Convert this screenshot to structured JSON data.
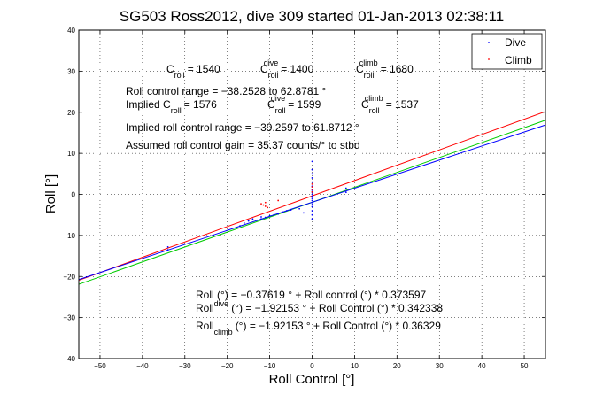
{
  "chart_data": {
    "type": "scatter",
    "title": "SG503 Ross2012, dive 309 started 01-Jan-2013 02:38:11",
    "xlabel": "Roll Control [°]",
    "ylabel": "Roll [°]",
    "xlim": [
      -55,
      55
    ],
    "ylim": [
      -40,
      40
    ],
    "xticks": [
      -50,
      -40,
      -30,
      -20,
      -10,
      0,
      10,
      20,
      30,
      40,
      50
    ],
    "yticks": [
      -40,
      -30,
      -20,
      -10,
      0,
      10,
      20,
      30,
      40
    ],
    "xtick_labels": [
      "−50",
      "−40",
      "−30",
      "−20",
      "−10",
      "0",
      "10",
      "20",
      "30",
      "40",
      "50"
    ],
    "ytick_labels": [
      "−40",
      "−30",
      "−20",
      "−10",
      "0",
      "10",
      "20",
      "30",
      "40"
    ],
    "grid": true,
    "legend": {
      "position": "top-right",
      "entries": [
        {
          "label": "Dive",
          "color": "#0000ff"
        },
        {
          "label": "Climb",
          "color": "#ff0000"
        }
      ]
    },
    "fit_lines": [
      {
        "color": "#ff0000",
        "intercept": -0.37619,
        "slope": 0.373597
      },
      {
        "color": "#00cc00",
        "intercept": -1.92153,
        "slope": 0.36329
      },
      {
        "color": "#0000ff",
        "intercept": -1.92153,
        "slope": 0.342338
      }
    ],
    "series": [
      {
        "name": "Dive",
        "color": "#0000ff",
        "marker": "dot",
        "x": [
          -34,
          -34,
          -17,
          -16,
          -15,
          -14,
          -13,
          -12,
          -12,
          -11,
          -10,
          -9,
          -8,
          -7,
          -6,
          -5,
          -3,
          -2,
          0,
          0,
          0,
          0,
          0,
          0,
          0,
          0,
          0,
          0,
          0,
          0,
          0,
          0,
          0,
          0,
          0,
          0,
          8,
          8
        ],
        "y": [
          -13.5,
          -12.8,
          -7.7,
          -7.0,
          -6.5,
          -6.0,
          -6.3,
          -5.5,
          -6.0,
          -5.6,
          -5.2,
          -5.0,
          -4.8,
          -4.3,
          -4.0,
          -3.8,
          -3.5,
          -4.5,
          8,
          6,
          5,
          4,
          3,
          2,
          1,
          0.5,
          0,
          -0.5,
          -1,
          -1.5,
          -2,
          -2.5,
          -3,
          -4,
          -5,
          -6,
          0.5,
          1.5
        ]
      },
      {
        "name": "Climb",
        "color": "#ff0000",
        "marker": "dot",
        "x": [
          -12,
          -11.5,
          -11,
          -11,
          -10.5,
          -8,
          0,
          0,
          0,
          0
        ],
        "y": [
          -2.3,
          -2.6,
          -2.9,
          -2.0,
          -3.2,
          -1.5,
          2.5,
          1.8,
          1.2,
          0.6
        ]
      }
    ],
    "annotations": {
      "c_roll": {
        "base": "C",
        "sub": "roll",
        "value": "= 1540"
      },
      "c_roll_dive": {
        "base": "C",
        "sub": "roll",
        "sup": "dive",
        "value": "= 1400"
      },
      "c_roll_climb": {
        "base": "C",
        "sub": "roll",
        "sup": "climb",
        "value": "= 1680"
      },
      "roll_range": "Roll control range = −38.2528 to 62.8781 °",
      "implied_c_roll": {
        "prefix": "Implied C",
        "sub": "roll",
        "value": "= 1576"
      },
      "implied_c_roll_dive": {
        "base": "C",
        "sub": "roll",
        "sup": "dive",
        "value": "= 1599"
      },
      "implied_c_roll_climb": {
        "base": "C",
        "sub": "roll",
        "sup": "climb",
        "value": "= 1537"
      },
      "implied_range": "Implied roll control range = −39.2597 to 61.8712 °",
      "assumed_gain": "Assumed roll control gain = 35.37 counts/° to stbd",
      "eq_all": "Roll (°) = −0.37619 ° + Roll control (°) * 0.373597",
      "eq_dive": {
        "base": "Roll",
        "sub": "dive",
        "rest": "(°) = −1.92153 ° + Roll Control (°) * 0.342338"
      },
      "eq_climb": {
        "base": "Roll",
        "sub": "climb",
        "rest": "(°) = −1.92153 ° + Roll Control (°) * 0.36329"
      }
    }
  }
}
